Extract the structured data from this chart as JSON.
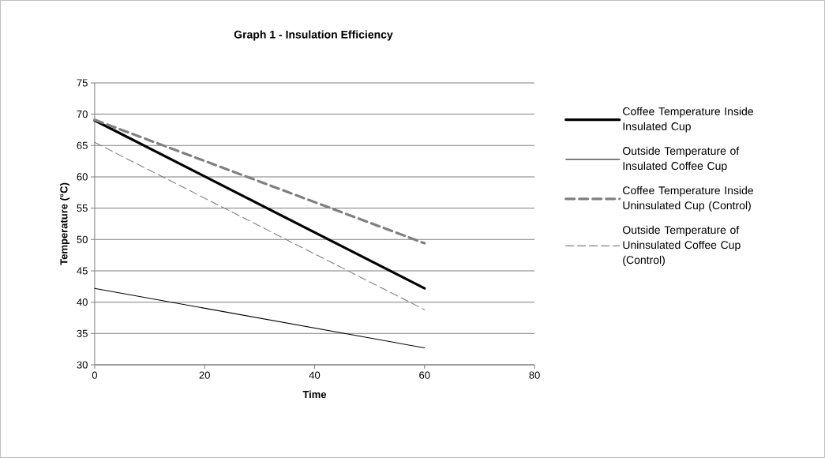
{
  "chart_data": {
    "type": "line",
    "title": "Graph 1 - Insulation Efficiency",
    "xlabel": "Time",
    "ylabel": "Temperature (°C)",
    "x": [
      0,
      60
    ],
    "series": [
      {
        "name": "Coffee Temperature Inside Insulated Cup",
        "color": "#000000",
        "line_style": "solid",
        "values": [
          69.0,
          42.2
        ]
      },
      {
        "name": "Outside Temperature of Insulated Coffee Cup",
        "color": "#000000",
        "line_style": "solid",
        "values": [
          42.2,
          32.7
        ]
      },
      {
        "name": "Coffee Temperature Inside Uninsulated Cup (Control)",
        "color": "#808080",
        "line_style": "dashed",
        "values": [
          69.1,
          49.4
        ]
      },
      {
        "name": "Outside Temperature of Uninsulated Coffee Cup (Control)",
        "color": "#808080",
        "line_style": "dashed",
        "values": [
          65.5,
          38.8
        ]
      }
    ],
    "xlim": [
      0,
      80
    ],
    "xticks": [
      0,
      20,
      40,
      60,
      80
    ],
    "ylim": [
      30,
      75
    ],
    "yticks": [
      30,
      35,
      40,
      45,
      50,
      55,
      60,
      65,
      70,
      75
    ],
    "grid": "y",
    "legend": "right",
    "marker": "none"
  }
}
